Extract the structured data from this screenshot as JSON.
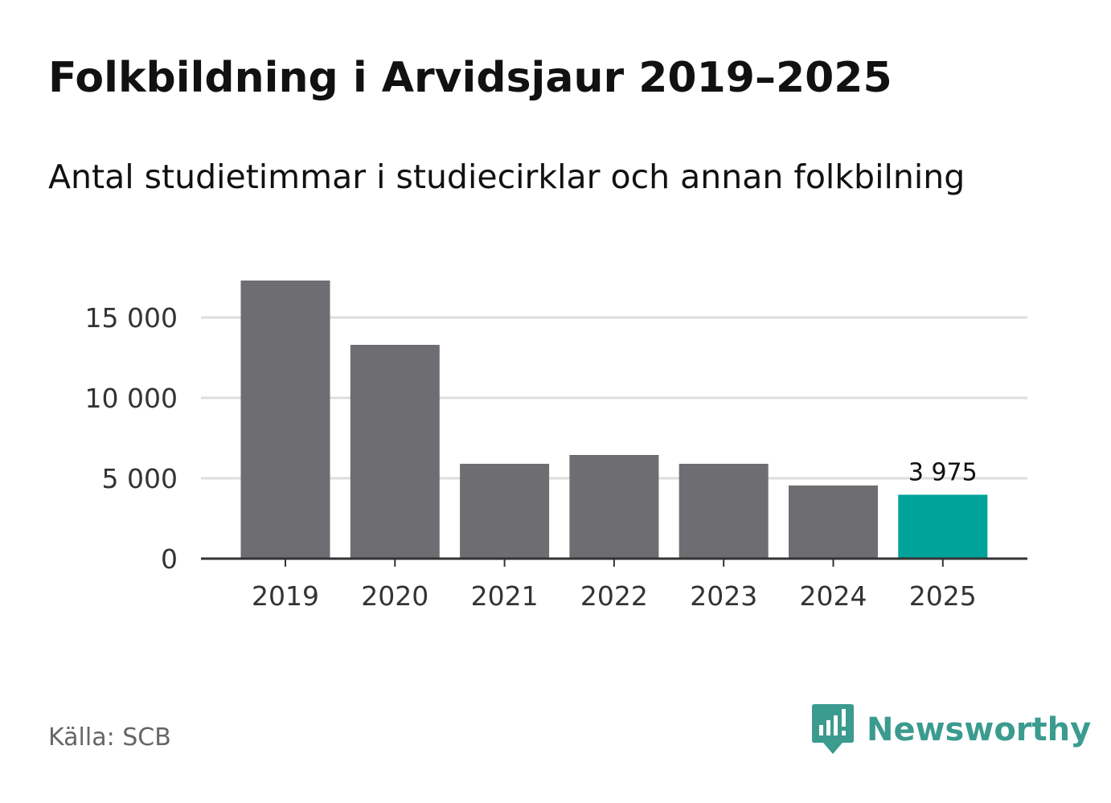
{
  "header": {
    "title": "Folkbildning i Arvidsjaur 2019–2025",
    "subtitle": "Antal studietimmar i studiecirklar och annan folkbilning"
  },
  "chart_data": {
    "type": "bar",
    "title": "Folkbildning i Arvidsjaur 2019–2025",
    "subtitle": "Antal studietimmar i studiecirklar och annan folkbilning",
    "categories": [
      "2019",
      "2020",
      "2021",
      "2022",
      "2023",
      "2024",
      "2025"
    ],
    "values": [
      17300,
      13300,
      5900,
      6450,
      5900,
      4550,
      3975
    ],
    "ylim": [
      0,
      17300
    ],
    "yticks": [
      0,
      5000,
      10000,
      15000
    ],
    "ytick_labels": [
      "0",
      "5 000",
      "10 000",
      "15 000"
    ],
    "grid": true,
    "highlight_index": 6,
    "highlight_label": "3 975",
    "colors": {
      "bar": "#6d6d72",
      "highlight": "#00a39a",
      "grid": "#dddddd",
      "axis": "#333333"
    }
  },
  "footer": {
    "source": "Källa: SCB",
    "brand": "Newsworthy",
    "brand_icon": "bar-chart-speech-bubble-icon",
    "brand_color": "#3b9b8f"
  }
}
